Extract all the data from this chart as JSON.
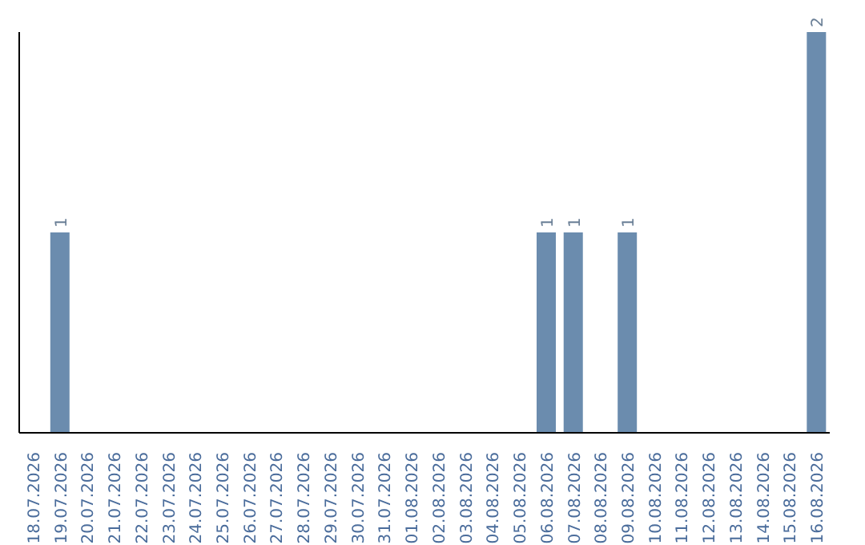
{
  "chart_data": {
    "type": "bar",
    "categories": [
      "18.07.2026",
      "19.07.2026",
      "20.07.2026",
      "21.07.2026",
      "22.07.2026",
      "23.07.2026",
      "24.07.2026",
      "25.07.2026",
      "26.07.2026",
      "27.07.2026",
      "28.07.2026",
      "29.07.2026",
      "30.07.2026",
      "31.07.2026",
      "01.08.2026",
      "02.08.2026",
      "03.08.2026",
      "04.08.2026",
      "05.08.2026",
      "06.08.2026",
      "07.08.2026",
      "08.08.2026",
      "09.08.2026",
      "10.08.2026",
      "11.08.2026",
      "12.08.2026",
      "13.08.2026",
      "14.08.2026",
      "15.08.2026",
      "16.08.2026"
    ],
    "values": [
      0,
      1,
      0,
      0,
      0,
      0,
      0,
      0,
      0,
      0,
      0,
      0,
      0,
      0,
      0,
      0,
      0,
      0,
      0,
      1,
      1,
      0,
      1,
      0,
      0,
      0,
      0,
      0,
      0,
      2
    ],
    "value_labels": [
      null,
      "1",
      null,
      null,
      null,
      null,
      null,
      null,
      null,
      null,
      null,
      null,
      null,
      null,
      null,
      null,
      null,
      null,
      null,
      "1",
      "1",
      null,
      "1",
      null,
      null,
      null,
      null,
      null,
      null,
      "2"
    ],
    "color": "#6b8cae",
    "tick_labels": "x"
  }
}
